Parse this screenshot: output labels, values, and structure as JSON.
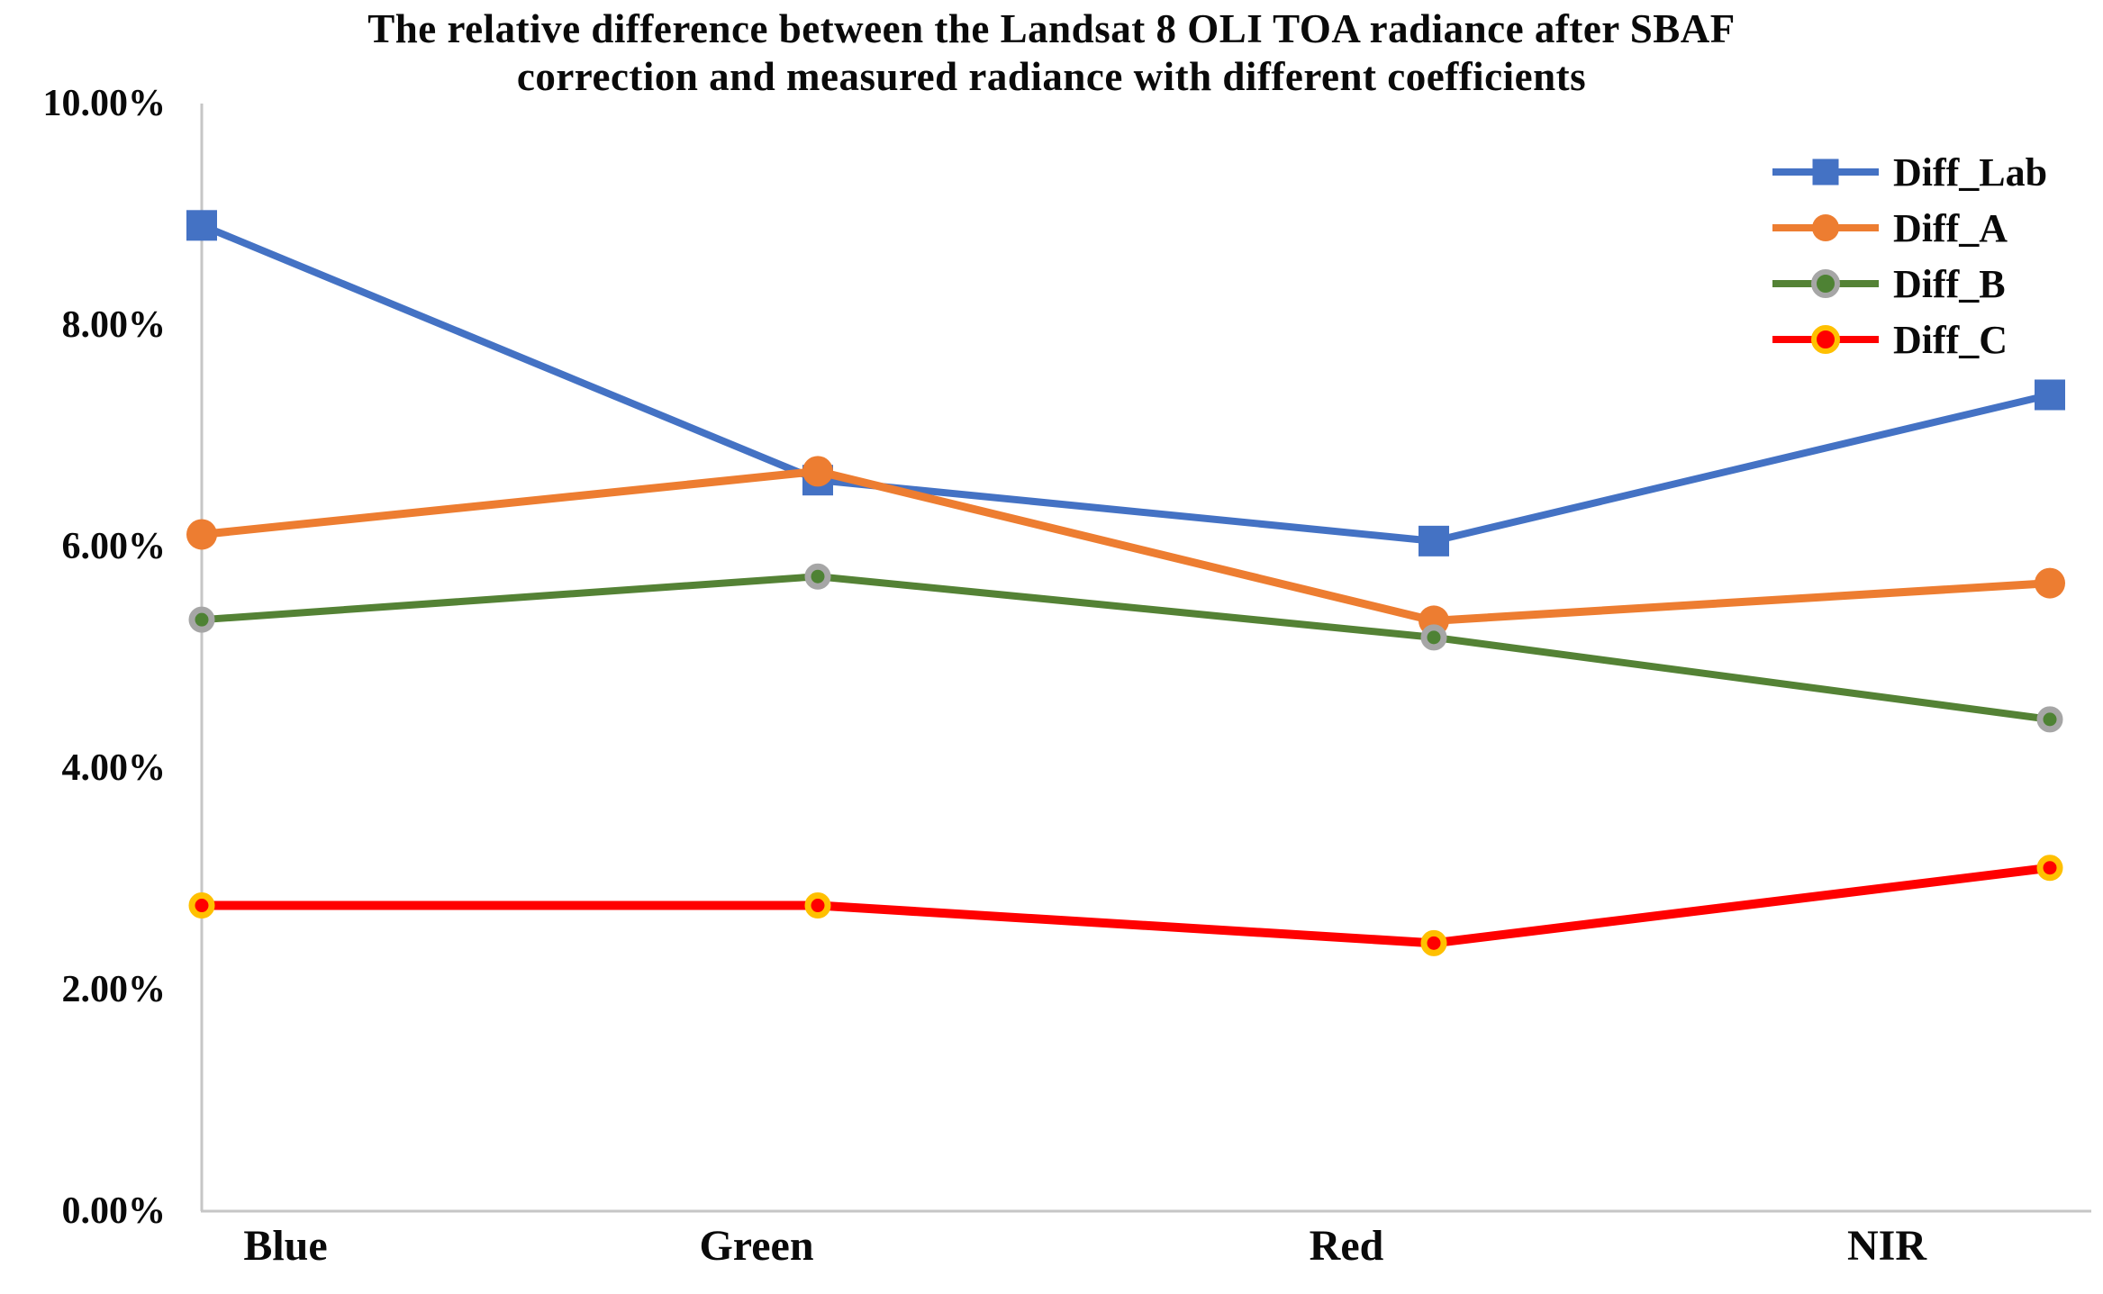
{
  "title": {
    "line1": "The relative difference between the Landsat 8 OLI TOA radiance after SBAF",
    "line2": "correction and measured radiance with different coefficients"
  },
  "chart_data": {
    "type": "line",
    "title": "The relative difference between the Landsat 8 OLI TOA radiance after SBAF correction and measured radiance with different coefficients",
    "categories": [
      "Blue",
      "Green",
      "Red",
      "NIR"
    ],
    "series": [
      {
        "name": "Diff_Lab",
        "color": "#4472C4",
        "marker": "square",
        "marker_fill": "#4472C4",
        "marker_ring": null,
        "values": [
          8.9,
          6.6,
          6.05,
          7.37
        ]
      },
      {
        "name": "Diff_A",
        "color": "#ED7D31",
        "marker": "circle",
        "marker_fill": "#ED7D31",
        "marker_ring": null,
        "values": [
          6.11,
          6.68,
          5.33,
          5.67
        ]
      },
      {
        "name": "Diff_B",
        "color": "#548235",
        "marker": "circle-gray-ring",
        "marker_fill": "#4E8234",
        "marker_ring": "#A6A6A6",
        "values": [
          5.34,
          5.73,
          5.18,
          4.44
        ]
      },
      {
        "name": "Diff_C",
        "color": "#FF0000",
        "marker": "circle-yellow-ring",
        "marker_fill": "#FF0000",
        "marker_ring": "#FFC000",
        "values": [
          2.76,
          2.76,
          2.42,
          3.1
        ]
      }
    ],
    "ylim": [
      0,
      10
    ],
    "y_tick_step": 2,
    "y_tick_labels": [
      "0.00%",
      "2.00%",
      "4.00%",
      "6.00%",
      "8.00%",
      "10.00%"
    ],
    "xlabel": "",
    "ylabel": "",
    "grid": false,
    "legend_position": "top-right",
    "axis_color": "#C6C6C6"
  }
}
